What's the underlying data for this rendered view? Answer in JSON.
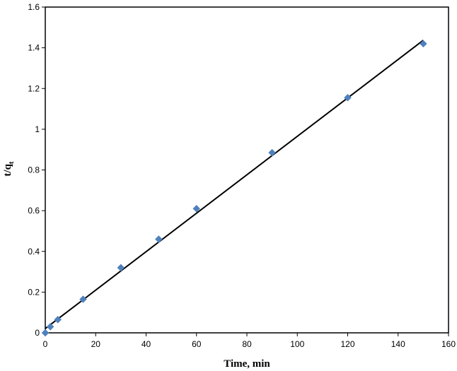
{
  "chart_data": {
    "type": "scatter",
    "title": "",
    "xlabel": "Time, min",
    "ylabel_main": "t/q",
    "ylabel_sub": "t",
    "xlim": [
      0,
      160
    ],
    "ylim": [
      0,
      1.6
    ],
    "x_ticks": [
      0,
      20,
      40,
      60,
      80,
      100,
      120,
      140,
      160
    ],
    "y_ticks": [
      0,
      0.2,
      0.4,
      0.6,
      0.8,
      1,
      1.2,
      1.4,
      1.6
    ],
    "x_tick_labels": [
      "0",
      "20",
      "40",
      "60",
      "80",
      "100",
      "120",
      "140",
      "160"
    ],
    "y_tick_labels": [
      "0",
      "0.2",
      "0.4",
      "0.6",
      "0.8",
      "1",
      "1.2",
      "1.4",
      "1.6"
    ],
    "grid": false,
    "legend": "none",
    "series": [
      {
        "x": [
          0,
          2,
          5,
          15,
          30,
          45,
          60,
          90,
          120,
          150
        ],
        "y": [
          0.0,
          0.03,
          0.065,
          0.165,
          0.32,
          0.46,
          0.61,
          0.885,
          1.155,
          1.42
        ],
        "marker": "diamond",
        "color": "#4F81BD"
      }
    ],
    "trendline": {
      "x": [
        0,
        150
      ],
      "y": [
        0.021,
        1.437
      ],
      "color": "#000000"
    }
  }
}
